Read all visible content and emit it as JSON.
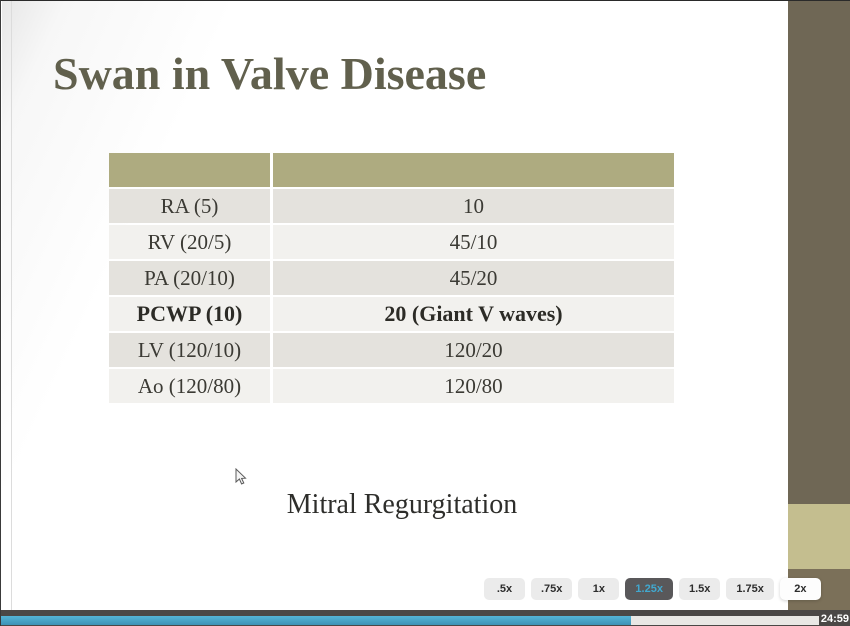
{
  "slide": {
    "title": "Swan in Valve Disease",
    "caption": "Mitral Regurgitation",
    "table": {
      "columns": [
        "",
        ""
      ],
      "rows": [
        {
          "label": "RA (5)",
          "value": "10"
        },
        {
          "label": "RV (20/5)",
          "value": "45/10"
        },
        {
          "label": "PA (20/10)",
          "value": "45/20"
        },
        {
          "label": "PCWP (10)",
          "value": "20 (Giant V waves)"
        },
        {
          "label": "LV (120/10)",
          "value": "120/20"
        },
        {
          "label": "Ao (120/80)",
          "value": "120/80"
        }
      ]
    }
  },
  "player": {
    "speed_options": [
      {
        "label": ".5x",
        "selected": false
      },
      {
        "label": ".75x",
        "selected": false
      },
      {
        "label": "1x",
        "selected": false
      },
      {
        "label": "1.25x",
        "selected": true
      },
      {
        "label": "1.5x",
        "selected": false
      },
      {
        "label": "1.75x",
        "selected": false
      },
      {
        "label": "2x",
        "selected": false
      }
    ],
    "time_remaining": "24:59",
    "progress_percent": 77
  },
  "colors": {
    "accent_blue": "#41a8cf",
    "progress_blue": "#47a5c9",
    "table_header_olive": "#aeab80",
    "sidebar_olive_dark": "#6f6755",
    "sidebar_olive_light": "#c4be8f",
    "player_bar_gray": "#4b4846"
  }
}
